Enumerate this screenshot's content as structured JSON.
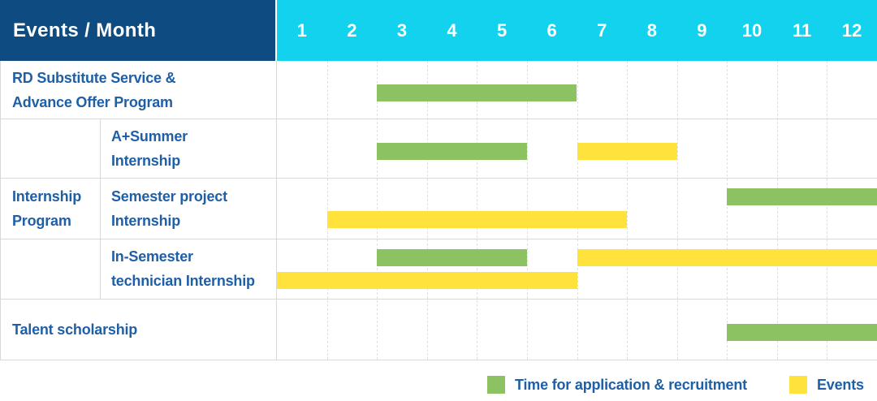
{
  "header": {
    "label": "Events / Month",
    "months": [
      "1",
      "2",
      "3",
      "4",
      "5",
      "6",
      "7",
      "8",
      "9",
      "10",
      "11",
      "12"
    ]
  },
  "colors": {
    "header_bg": "#0d4b80",
    "month_header_bg": "#12d2ee",
    "header_text": "#ffffff",
    "label_text": "#1f5fa6",
    "grid_line": "#d9d9d9",
    "application": "#8cc262",
    "event": "#ffe23c"
  },
  "chart_data": {
    "type": "gantt",
    "x_unit": "month",
    "x_ticks": [
      "1",
      "2",
      "3",
      "4",
      "5",
      "6",
      "7",
      "8",
      "9",
      "10",
      "11",
      "12"
    ],
    "groups": [
      {
        "label": "Internship Program",
        "lines": [
          "Internship",
          "Program"
        ],
        "row_indexes": [
          1,
          2,
          3
        ]
      }
    ],
    "rows": [
      {
        "label": "RD Substitute Service & Advance Offer Program",
        "label_lines": [
          "RD Substitute Service &",
          "Advance Offer Program"
        ],
        "bars": [
          {
            "type": "application",
            "start_month": 3,
            "end_month": 6,
            "lane": "single"
          }
        ]
      },
      {
        "label": "A+Summer Internship",
        "label_lines": [
          "A+Summer",
          "Internship"
        ],
        "group": "Internship Program",
        "bars": [
          {
            "type": "application",
            "start_month": 3,
            "end_month": 5,
            "lane": "single"
          },
          {
            "type": "event",
            "start_month": 7,
            "end_month": 8,
            "lane": "single"
          }
        ]
      },
      {
        "label": "Semester project Internship",
        "label_lines": [
          "Semester project",
          "Internship"
        ],
        "group": "Internship Program",
        "bars": [
          {
            "type": "application",
            "start_month": 10,
            "end_month": 12,
            "lane": "top"
          },
          {
            "type": "event",
            "start_month": 2,
            "end_month": 7,
            "lane": "bottom"
          }
        ]
      },
      {
        "label": "In-Semester technician Internship",
        "label_lines": [
          "In-Semester",
          "technician Internship"
        ],
        "group": "Internship Program",
        "bars": [
          {
            "type": "application",
            "start_month": 3,
            "end_month": 5,
            "lane": "top"
          },
          {
            "type": "event",
            "start_month": 7,
            "end_month": 12,
            "lane": "top"
          },
          {
            "type": "event",
            "start_month": 1,
            "end_month": 6,
            "lane": "bottom"
          }
        ]
      },
      {
        "label": "Talent scholarship",
        "label_lines": [
          "Talent scholarship"
        ],
        "bars": [
          {
            "type": "application",
            "start_month": 10,
            "end_month": 12,
            "lane": "single"
          }
        ]
      }
    ],
    "legend": [
      {
        "type": "application",
        "label": "Time for application & recruitment"
      },
      {
        "type": "event",
        "label": "Events"
      }
    ]
  }
}
